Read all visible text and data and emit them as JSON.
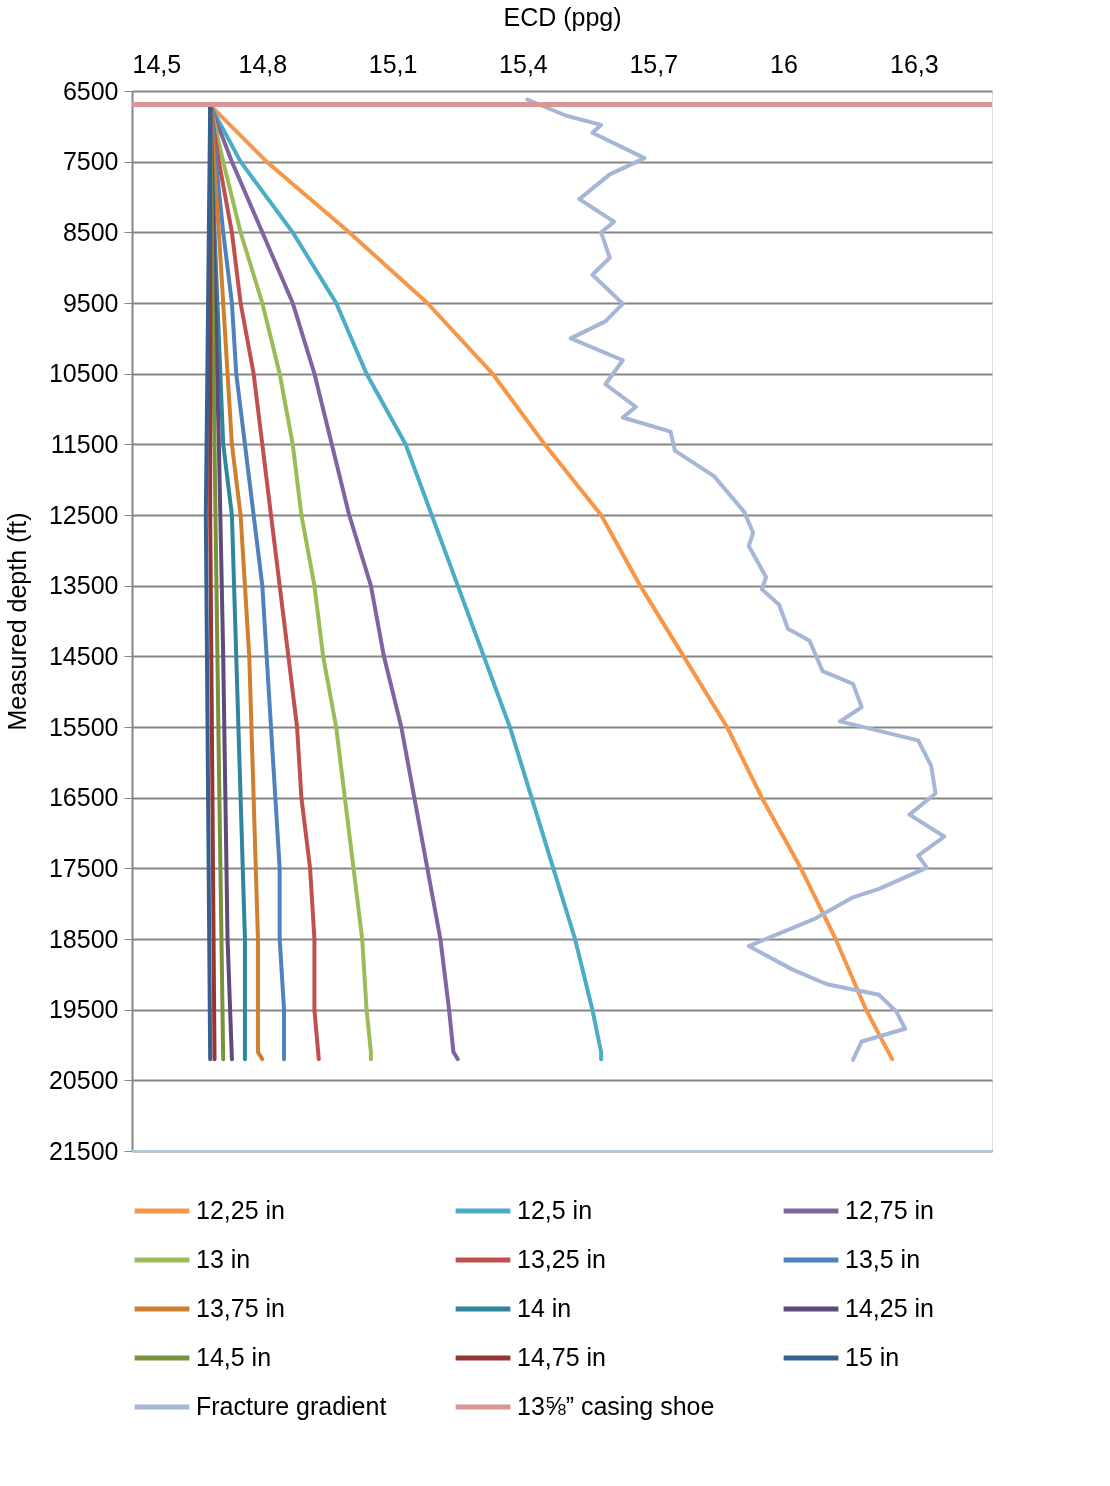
{
  "chart_data": {
    "type": "line",
    "xlabel": "ECD (ppg)",
    "ylabel": "Measured depth (ft)",
    "xlim": [
      14.5,
      16.48
    ],
    "xticks": [
      {
        "value": 14.5,
        "label": "14,5"
      },
      {
        "value": 14.8,
        "label": "14,8"
      },
      {
        "value": 15.1,
        "label": "15,1"
      },
      {
        "value": 15.4,
        "label": "15,4"
      },
      {
        "value": 15.7,
        "label": "15,7"
      },
      16,
      {
        "value": 16.3,
        "label": "16,3"
      }
    ],
    "ylim": [
      21500,
      6500
    ],
    "yticks": [
      6500,
      7500,
      8500,
      9500,
      10500,
      11500,
      12500,
      13500,
      14500,
      15500,
      16500,
      17500,
      18500,
      19500,
      20500,
      21500
    ],
    "grid": "y",
    "legend": "bottom",
    "marker": "none",
    "line_style": "solid",
    "series": [
      {
        "name": "12,25 in",
        "color": "#f79646",
        "x": [
          14.68,
          14.81,
          15.0,
          15.18,
          15.33,
          15.45,
          15.58,
          15.67,
          15.77,
          15.87,
          15.95,
          16.04,
          16.12,
          16.19,
          16.25
        ],
        "values": [
          6700,
          7500,
          8500,
          9500,
          10500,
          11500,
          12500,
          13500,
          14500,
          15500,
          16500,
          17500,
          18500,
          19500,
          20200
        ]
      },
      {
        "name": "12,5 in",
        "color": "#4bacc6",
        "x": [
          14.68,
          14.75,
          14.87,
          14.97,
          15.04,
          15.13,
          15.19,
          15.25,
          15.31,
          15.37,
          15.42,
          15.47,
          15.52,
          15.56,
          15.58,
          15.58
        ],
        "values": [
          6700,
          7500,
          8500,
          9500,
          10500,
          11500,
          12500,
          13500,
          14500,
          15500,
          16500,
          17500,
          18500,
          19500,
          20100,
          20200
        ]
      },
      {
        "name": "12,75 in",
        "color": "#8064a2",
        "x": [
          14.68,
          14.73,
          14.8,
          14.87,
          14.92,
          14.96,
          15.0,
          15.05,
          15.08,
          15.12,
          15.15,
          15.18,
          15.21,
          15.23,
          15.24,
          15.25
        ],
        "values": [
          6700,
          7500,
          8500,
          9500,
          10500,
          11500,
          12500,
          13500,
          14500,
          15500,
          16500,
          17500,
          18500,
          19500,
          20100,
          20200
        ]
      },
      {
        "name": "13 in",
        "color": "#9bbb59",
        "x": [
          14.68,
          14.71,
          14.75,
          14.8,
          14.84,
          14.87,
          14.89,
          14.92,
          14.94,
          14.97,
          14.99,
          15.01,
          15.03,
          15.04,
          15.05,
          15.05
        ],
        "values": [
          6700,
          7500,
          8500,
          9500,
          10500,
          11500,
          12500,
          13500,
          14500,
          15500,
          16500,
          17500,
          18500,
          19500,
          20100,
          20200
        ]
      },
      {
        "name": "13,25 in",
        "color": "#c0504d",
        "x": [
          14.68,
          14.7,
          14.73,
          14.75,
          14.78,
          14.8,
          14.82,
          14.84,
          14.86,
          14.88,
          14.89,
          14.91,
          14.92,
          14.92,
          14.93
        ],
        "values": [
          6700,
          7500,
          8500,
          9500,
          10500,
          11500,
          12500,
          13500,
          14500,
          15500,
          16500,
          17500,
          18500,
          19500,
          20200
        ]
      },
      {
        "name": "13,5 in",
        "color": "#4f81bd",
        "x": [
          14.68,
          14.71,
          14.73,
          14.74,
          14.76,
          14.78,
          14.8,
          14.81,
          14.82,
          14.83,
          14.84,
          14.84,
          14.85,
          14.85
        ],
        "values": [
          6700,
          8500,
          9500,
          10500,
          11500,
          12500,
          13500,
          14500,
          15500,
          16500,
          17500,
          18500,
          19500,
          20200
        ]
      },
      {
        "name": "13,75 in",
        "color": "#d07f2f",
        "x": [
          14.68,
          14.7,
          14.73,
          14.75,
          14.77,
          14.78,
          14.79,
          14.79,
          14.8
        ],
        "values": [
          6700,
          8500,
          11500,
          12500,
          14500,
          16500,
          18500,
          20100,
          20200
        ]
      },
      {
        "name": "14 in",
        "color": "#31859c",
        "x": [
          14.68,
          14.69,
          14.71,
          14.73,
          14.74,
          14.75,
          14.76,
          14.76
        ],
        "values": [
          6700,
          8500,
          11500,
          12500,
          14500,
          16500,
          18500,
          20200
        ]
      },
      {
        "name": "14,25 in",
        "color": "#604a7b",
        "x": [
          14.68,
          14.7,
          14.71,
          14.72,
          14.73
        ],
        "values": [
          6700,
          11500,
          14500,
          18500,
          20200
        ]
      },
      {
        "name": "14,5 in",
        "color": "#77933c",
        "x": [
          14.68,
          14.69,
          14.7,
          14.71
        ],
        "values": [
          6700,
          11500,
          16000,
          20200
        ]
      },
      {
        "name": "14,75 in",
        "color": "#953735",
        "x": [
          14.68,
          14.68,
          14.69
        ],
        "values": [
          6700,
          12500,
          20200
        ]
      },
      {
        "name": "15 in",
        "color": "#366092",
        "x": [
          14.68,
          14.67,
          14.68
        ],
        "values": [
          6700,
          12500,
          20200
        ]
      },
      {
        "name": "Fracture gradient",
        "color": "#a5b6d6",
        "x": [
          15.41,
          15.5,
          15.58,
          15.56,
          15.68,
          15.6,
          15.53,
          15.61,
          15.58,
          15.6,
          15.56,
          15.63,
          15.59,
          15.51,
          15.63,
          15.59,
          15.66,
          15.63,
          15.74,
          15.75,
          15.8,
          15.84,
          15.91,
          15.93,
          15.92,
          15.96,
          15.95,
          15.99,
          16.01,
          16.06,
          16.09,
          16.16,
          16.18,
          16.13,
          16.31,
          16.34,
          16.35,
          16.29,
          16.37,
          16.31,
          16.33,
          16.22,
          16.16,
          16.07,
          15.92,
          16.02,
          16.1,
          16.22,
          16.26,
          16.28,
          16.18,
          16.16
        ],
        "values": [
          6620,
          6850,
          6980,
          7090,
          7450,
          7680,
          8030,
          8350,
          8500,
          8860,
          9100,
          9510,
          9760,
          10000,
          10310,
          10650,
          10970,
          11120,
          11320,
          11590,
          11790,
          11950,
          12460,
          12750,
          12940,
          13380,
          13550,
          13770,
          14110,
          14280,
          14710,
          14890,
          15220,
          15420,
          15690,
          16050,
          16440,
          16740,
          17050,
          17320,
          17490,
          17790,
          17910,
          18220,
          18600,
          18930,
          19140,
          19290,
          19530,
          19770,
          19950,
          20210
        ]
      }
    ],
    "ref_lines": [
      {
        "axis": "y",
        "value": 6690,
        "label": "13⅝” casing shoe",
        "color": "#d99694"
      }
    ]
  }
}
